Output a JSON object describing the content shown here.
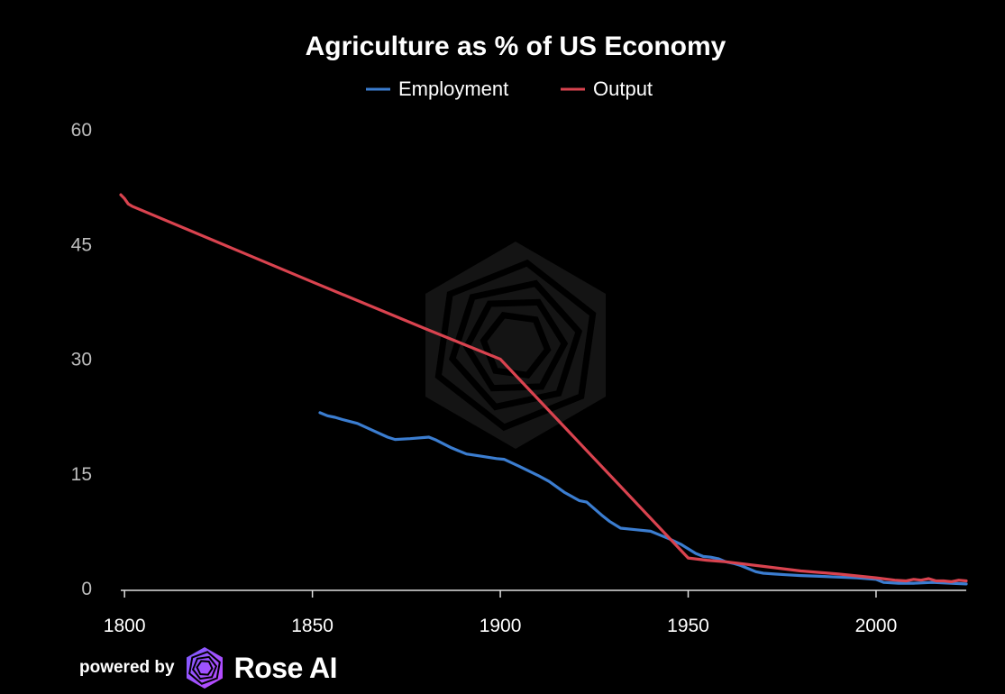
{
  "chart_data": {
    "type": "line",
    "title": "Agriculture as % of US Economy",
    "xlabel": "",
    "ylabel": "",
    "xlim": [
      1799,
      2024
    ],
    "ylim": [
      0,
      60
    ],
    "x_ticks": [
      1800,
      1850,
      1900,
      1950,
      2000
    ],
    "y_ticks": [
      0,
      15,
      30,
      45,
      60
    ],
    "grid": false,
    "legend_position": "top-center",
    "series": [
      {
        "name": "Employment",
        "color": "#3b7dd0",
        "points": [
          [
            1852,
            23.0
          ],
          [
            1854,
            22.6
          ],
          [
            1856,
            22.4
          ],
          [
            1858,
            22.1
          ],
          [
            1862,
            21.6
          ],
          [
            1866,
            20.7
          ],
          [
            1870,
            19.8
          ],
          [
            1872,
            19.5
          ],
          [
            1876,
            19.6
          ],
          [
            1881,
            19.8
          ],
          [
            1883,
            19.4
          ],
          [
            1887,
            18.4
          ],
          [
            1891,
            17.6
          ],
          [
            1895,
            17.3
          ],
          [
            1899,
            17.0
          ],
          [
            1901,
            16.9
          ],
          [
            1905,
            16.0
          ],
          [
            1910,
            14.8
          ],
          [
            1913,
            14.0
          ],
          [
            1917,
            12.6
          ],
          [
            1921,
            11.5
          ],
          [
            1923,
            11.3
          ],
          [
            1927,
            9.6
          ],
          [
            1929,
            8.8
          ],
          [
            1932,
            7.9
          ],
          [
            1936,
            7.7
          ],
          [
            1940,
            7.5
          ],
          [
            1942,
            7.1
          ],
          [
            1945,
            6.5
          ],
          [
            1948,
            5.8
          ],
          [
            1950,
            5.2
          ],
          [
            1952,
            4.6
          ],
          [
            1954,
            4.2
          ],
          [
            1956,
            4.1
          ],
          [
            1958,
            3.9
          ],
          [
            1960,
            3.5
          ],
          [
            1962,
            3.3
          ],
          [
            1964,
            3.0
          ],
          [
            1966,
            2.6
          ],
          [
            1968,
            2.2
          ],
          [
            1970,
            2.0
          ],
          [
            1973,
            1.9
          ],
          [
            1976,
            1.8
          ],
          [
            1980,
            1.7
          ],
          [
            1985,
            1.6
          ],
          [
            1990,
            1.5
          ],
          [
            1995,
            1.4
          ],
          [
            2000,
            1.2
          ],
          [
            2002,
            0.8
          ],
          [
            2006,
            0.7
          ],
          [
            2010,
            0.7
          ],
          [
            2015,
            0.8
          ],
          [
            2020,
            0.7
          ],
          [
            2024,
            0.6
          ]
        ]
      },
      {
        "name": "Output",
        "color": "#d9434f",
        "points": [
          [
            1799,
            51.5
          ],
          [
            1800,
            51.0
          ],
          [
            1801,
            50.3
          ],
          [
            1802,
            50.0
          ],
          [
            1850,
            40.1
          ],
          [
            1880,
            34.0
          ],
          [
            1900,
            30.0
          ],
          [
            1925,
            17.0
          ],
          [
            1950,
            4.0
          ],
          [
            1955,
            3.7
          ],
          [
            1960,
            3.5
          ],
          [
            1970,
            2.9
          ],
          [
            1980,
            2.3
          ],
          [
            1990,
            1.9
          ],
          [
            2000,
            1.4
          ],
          [
            2005,
            1.1
          ],
          [
            2008,
            1.0
          ],
          [
            2010,
            1.2
          ],
          [
            2012,
            1.1
          ],
          [
            2014,
            1.3
          ],
          [
            2016,
            1.0
          ],
          [
            2018,
            1.0
          ],
          [
            2020,
            0.9
          ],
          [
            2022,
            1.1
          ],
          [
            2024,
            1.0
          ]
        ]
      }
    ]
  },
  "footer": {
    "powered_by": "powered by",
    "brand": "Rose AI"
  }
}
